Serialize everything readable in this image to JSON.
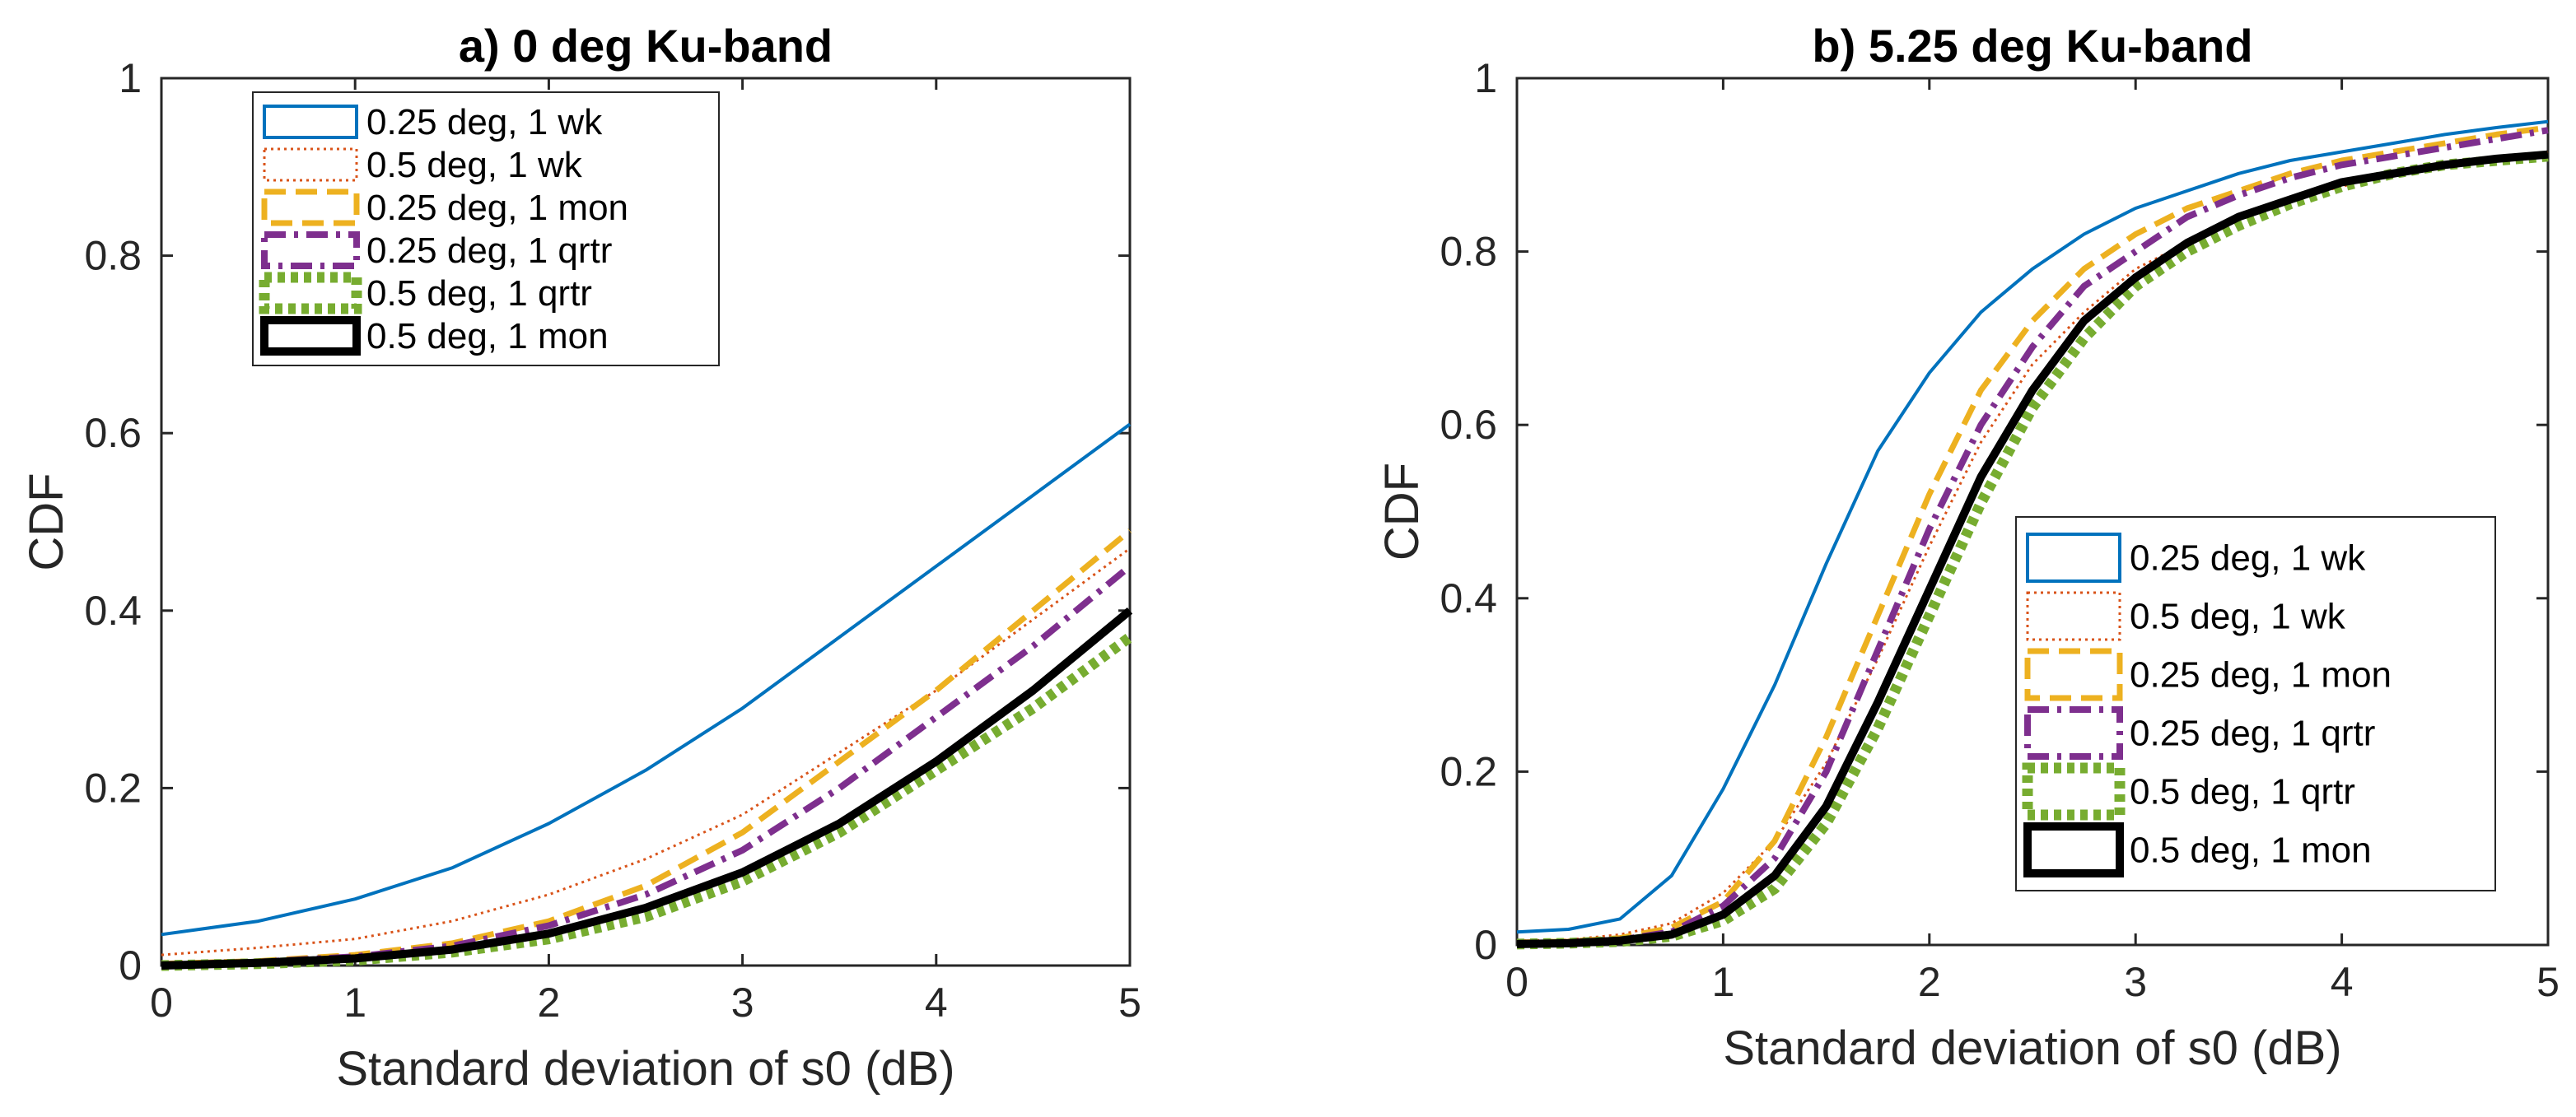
{
  "chart_data": [
    {
      "type": "line",
      "title": "a) 0 deg Ku-band",
      "xlabel": "Standard deviation of s0 (dB)",
      "ylabel": "CDF",
      "xlim": [
        0,
        5
      ],
      "ylim": [
        0,
        1
      ],
      "xticks": [
        "0",
        "1",
        "2",
        "3",
        "4",
        "5"
      ],
      "yticks": [
        "0",
        "0.2",
        "0.4",
        "0.6",
        "0.8",
        "1"
      ],
      "legend_position": "top-left",
      "x": [
        0,
        0.5,
        1,
        1.5,
        2,
        2.5,
        3,
        3.5,
        4,
        4.5,
        5
      ],
      "series": [
        {
          "name": "0.25 deg, 1 wk",
          "color": "#0072BD",
          "style": "solid-thin",
          "values": [
            0.035,
            0.05,
            0.075,
            0.11,
            0.16,
            0.22,
            0.29,
            0.37,
            0.45,
            0.53,
            0.61
          ]
        },
        {
          "name": "0.5 deg, 1 wk",
          "color": "#D95319",
          "style": "dotted-thin",
          "values": [
            0.012,
            0.02,
            0.03,
            0.05,
            0.08,
            0.12,
            0.17,
            0.24,
            0.31,
            0.39,
            0.47
          ]
        },
        {
          "name": "0.25 deg, 1 mon",
          "color": "#EDB120",
          "style": "dashed",
          "values": [
            0.002,
            0.005,
            0.012,
            0.025,
            0.05,
            0.09,
            0.15,
            0.23,
            0.31,
            0.4,
            0.49
          ]
        },
        {
          "name": "0.25 deg, 1 qrtr",
          "color": "#7E2F8E",
          "style": "dashdot",
          "values": [
            0.001,
            0.004,
            0.01,
            0.022,
            0.045,
            0.08,
            0.13,
            0.2,
            0.28,
            0.36,
            0.45
          ]
        },
        {
          "name": "0.5 deg, 1 qrtr",
          "color": "#77AC30",
          "style": "dotted-thick",
          "values": [
            0,
            0.002,
            0.006,
            0.015,
            0.03,
            0.055,
            0.095,
            0.15,
            0.22,
            0.29,
            0.37
          ]
        },
        {
          "name": "0.5 deg, 1 mon",
          "color": "#000000",
          "style": "solid-thick",
          "values": [
            0,
            0.003,
            0.008,
            0.018,
            0.036,
            0.065,
            0.105,
            0.16,
            0.23,
            0.31,
            0.4
          ]
        }
      ]
    },
    {
      "type": "line",
      "title": "b) 5.25 deg Ku-band",
      "xlabel": "Standard deviation of s0 (dB)",
      "ylabel": "CDF",
      "xlim": [
        0,
        5
      ],
      "ylim": [
        0,
        1
      ],
      "xticks": [
        "0",
        "1",
        "2",
        "3",
        "4",
        "5"
      ],
      "yticks": [
        "0",
        "0.2",
        "0.4",
        "0.6",
        "0.8",
        "1"
      ],
      "legend_position": "bottom-right",
      "x": [
        0,
        0.25,
        0.5,
        0.75,
        1,
        1.25,
        1.5,
        1.75,
        2,
        2.25,
        2.5,
        2.75,
        3,
        3.25,
        3.5,
        3.75,
        4,
        4.25,
        4.5,
        4.75,
        5
      ],
      "series": [
        {
          "name": "0.25 deg, 1 wk",
          "color": "#0072BD",
          "style": "solid-thin",
          "values": [
            0.015,
            0.018,
            0.03,
            0.08,
            0.18,
            0.3,
            0.44,
            0.57,
            0.66,
            0.73,
            0.78,
            0.82,
            0.85,
            0.87,
            0.89,
            0.905,
            0.915,
            0.925,
            0.935,
            0.943,
            0.95
          ]
        },
        {
          "name": "0.5 deg, 1 wk",
          "color": "#D95319",
          "style": "dotted-thin",
          "values": [
            0.005,
            0.006,
            0.012,
            0.025,
            0.06,
            0.12,
            0.21,
            0.33,
            0.46,
            0.58,
            0.67,
            0.73,
            0.78,
            0.81,
            0.84,
            0.86,
            0.875,
            0.89,
            0.9,
            0.91,
            0.915
          ]
        },
        {
          "name": "0.25 deg, 1 mon",
          "color": "#EDB120",
          "style": "dashed",
          "values": [
            0.003,
            0.004,
            0.008,
            0.02,
            0.05,
            0.12,
            0.24,
            0.38,
            0.52,
            0.64,
            0.72,
            0.78,
            0.82,
            0.85,
            0.87,
            0.89,
            0.905,
            0.915,
            0.925,
            0.935,
            0.943
          ]
        },
        {
          "name": "0.25 deg, 1 qrtr",
          "color": "#7E2F8E",
          "style": "dashdot",
          "values": [
            0.002,
            0.003,
            0.006,
            0.015,
            0.045,
            0.1,
            0.2,
            0.34,
            0.48,
            0.6,
            0.69,
            0.76,
            0.8,
            0.84,
            0.865,
            0.885,
            0.9,
            0.91,
            0.92,
            0.93,
            0.94
          ]
        },
        {
          "name": "0.5 deg, 1 qrtr",
          "color": "#77AC30",
          "style": "dotted-thick",
          "values": [
            0.001,
            0.002,
            0.004,
            0.01,
            0.028,
            0.065,
            0.14,
            0.25,
            0.38,
            0.51,
            0.62,
            0.7,
            0.76,
            0.8,
            0.83,
            0.855,
            0.875,
            0.89,
            0.9,
            0.905,
            0.91
          ]
        },
        {
          "name": "0.5 deg, 1 mon",
          "color": "#000000",
          "style": "solid-thick",
          "values": [
            0.001,
            0.002,
            0.005,
            0.012,
            0.035,
            0.08,
            0.16,
            0.28,
            0.41,
            0.54,
            0.64,
            0.72,
            0.77,
            0.81,
            0.84,
            0.86,
            0.88,
            0.89,
            0.9,
            0.907,
            0.912
          ]
        }
      ]
    }
  ]
}
